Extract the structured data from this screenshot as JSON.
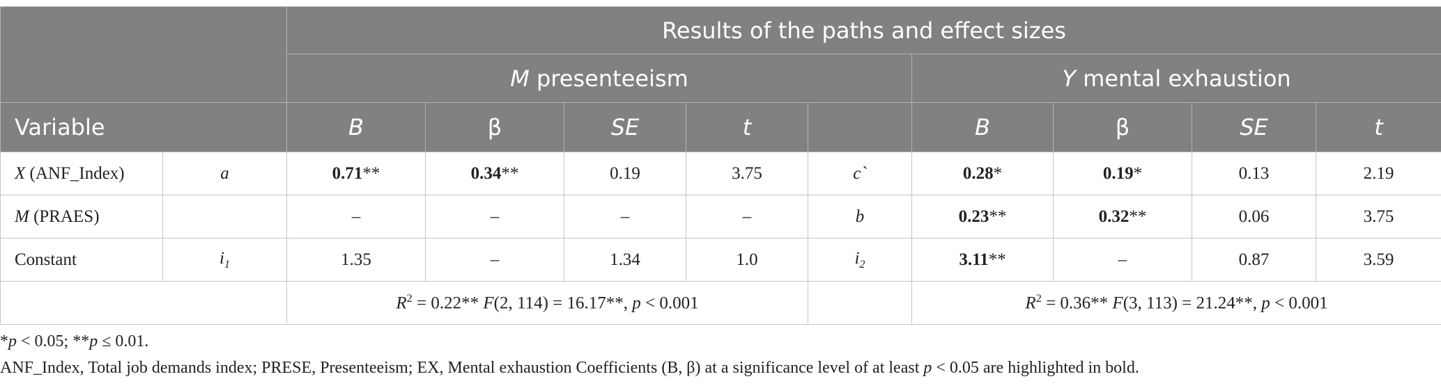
{
  "header": {
    "title": "Results of the paths and effect sizes",
    "groups": [
      [
        {
          "t": "M",
          "i": true
        },
        {
          "t": " presenteeism"
        }
      ],
      [
        {
          "t": "Y",
          "i": true
        },
        {
          "t": " mental exhaustion"
        }
      ]
    ],
    "columns": [
      "Variable",
      [
        {
          "t": "B",
          "i": true
        }
      ],
      "β",
      [
        {
          "t": "SE",
          "i": true
        }
      ],
      [
        {
          "t": "t",
          "i": true
        }
      ],
      [
        {
          "t": "B",
          "i": true
        }
      ],
      "β",
      [
        {
          "t": "SE",
          "i": true
        }
      ],
      [
        {
          "t": "t",
          "i": true
        }
      ]
    ]
  },
  "table": {
    "rows": [
      [
        [
          {
            "t": "X",
            "i": true
          },
          {
            "t": " (ANF_Index)"
          }
        ],
        [
          {
            "t": "a",
            "i": true
          }
        ],
        [
          {
            "t": "0.71",
            "b": true
          },
          {
            "t": "**"
          }
        ],
        [
          {
            "t": "0.34",
            "b": true
          },
          {
            "t": "**"
          }
        ],
        "0.19",
        "3.75",
        [
          {
            "t": "c`",
            "i": true
          }
        ],
        [
          {
            "t": "0.28",
            "b": true
          },
          {
            "t": "*"
          }
        ],
        [
          {
            "t": "0.19",
            "b": true
          },
          {
            "t": "*"
          }
        ],
        "0.13",
        "2.19"
      ],
      [
        [
          {
            "t": "M",
            "i": true
          },
          {
            "t": " (PRAES)"
          }
        ],
        null,
        "–",
        "–",
        "–",
        "–",
        [
          {
            "t": "b",
            "i": true
          }
        ],
        [
          {
            "t": "0.23",
            "b": true
          },
          {
            "t": "**"
          }
        ],
        [
          {
            "t": "0.32",
            "b": true
          },
          {
            "t": "**"
          }
        ],
        "0.06",
        "3.75"
      ],
      [
        "Constant",
        [
          {
            "t": "i",
            "i": true
          },
          {
            "t": "1",
            "i": true,
            "sub": true
          }
        ],
        "1.35",
        "–",
        "1.34",
        "1.0",
        [
          {
            "t": "i",
            "i": true
          },
          {
            "t": "2",
            "i": true,
            "sub": true
          }
        ],
        [
          {
            "t": "3.11",
            "b": true
          },
          {
            "t": "**"
          }
        ],
        "–",
        "0.87",
        "3.59"
      ]
    ],
    "fit": [
      [
        {
          "t": "R",
          "i": true
        },
        {
          "t": "2",
          "sup": true
        },
        {
          "t": " = 0.22** "
        },
        {
          "t": "F",
          "i": true
        },
        {
          "t": "(2, 114) = 16.17**, "
        },
        {
          "t": "p",
          "i": true
        },
        {
          "t": " < 0.001"
        }
      ],
      [
        {
          "t": "R",
          "i": true
        },
        {
          "t": "2",
          "sup": true
        },
        {
          "t": " = 0.36** "
        },
        {
          "t": "F",
          "i": true
        },
        {
          "t": "(3, 113) = 21.24**, "
        },
        {
          "t": "p",
          "i": true
        },
        {
          "t": " < 0.001"
        }
      ]
    ]
  },
  "notes": [
    [
      {
        "t": "*"
      },
      {
        "t": "p",
        "i": true
      },
      {
        "t": " < 0.05; **"
      },
      {
        "t": "p",
        "i": true
      },
      {
        "t": " ≤ 0.01."
      }
    ],
    [
      {
        "t": "ANF_Index, Total job demands index; PRESE, Presenteeism; EX, Mental exhaustion Coefficients (B, β) at a significance level of at least "
      },
      {
        "t": "p",
        "i": true
      },
      {
        "t": " < 0.05 are highlighted in bold."
      }
    ]
  ]
}
